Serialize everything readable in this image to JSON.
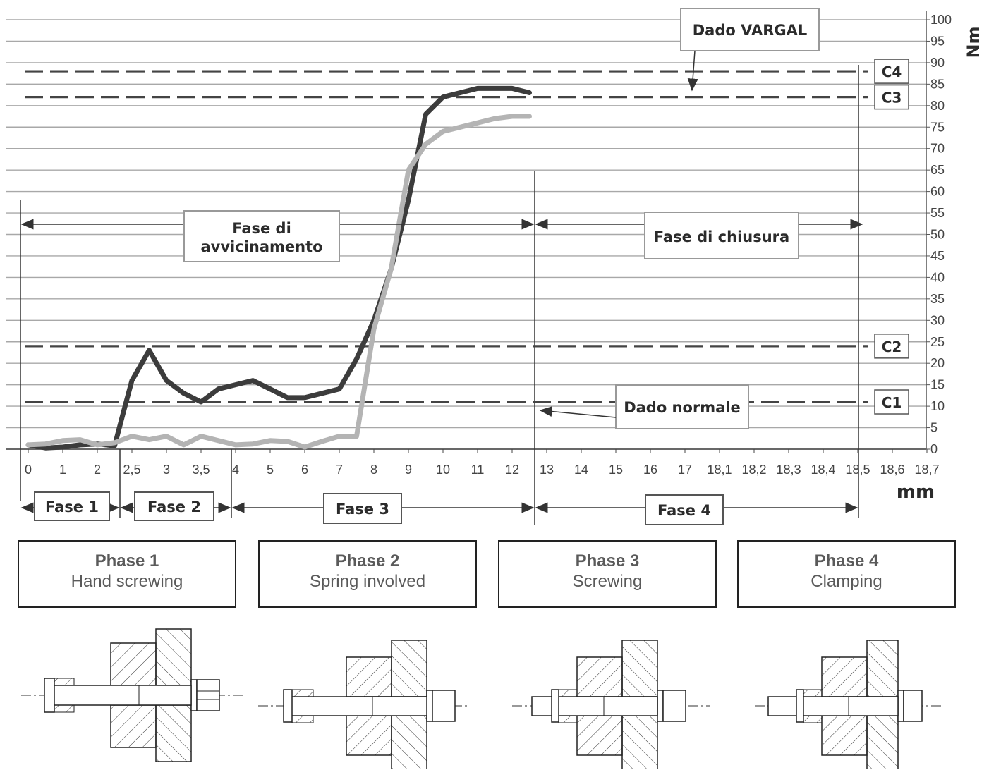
{
  "chart_data": {
    "type": "line",
    "x_tick_labels": [
      "0",
      "1",
      "2",
      "2,5",
      "3",
      "3,5",
      "4",
      "5",
      "6",
      "7",
      "8",
      "9",
      "10",
      "11",
      "12",
      "13",
      "14",
      "15",
      "16",
      "17",
      "18,1",
      "18,2",
      "18,3",
      "18,4",
      "18,5",
      "18,6",
      "18,7"
    ],
    "xlabel": "mm",
    "ylabel": "Nm",
    "ylim": [
      0,
      100
    ],
    "y_ticks": [
      0,
      5,
      10,
      15,
      20,
      25,
      30,
      35,
      40,
      45,
      50,
      55,
      60,
      65,
      70,
      75,
      80,
      85,
      90,
      95,
      100
    ],
    "series": [
      {
        "name": "Dado VARGAL",
        "color": "#3c3c3c",
        "points": [
          [
            0,
            1
          ],
          [
            0.5,
            0.3
          ],
          [
            1,
            0.5
          ],
          [
            1.5,
            1.0
          ],
          [
            2,
            1.2
          ],
          [
            2.5,
            0.8
          ],
          [
            2.75,
            8.5
          ],
          [
            3,
            16
          ],
          [
            3.5,
            23
          ],
          [
            4,
            16
          ],
          [
            4.5,
            13
          ],
          [
            5,
            11
          ],
          [
            5.5,
            14
          ],
          [
            6,
            15
          ],
          [
            6.5,
            16
          ],
          [
            7,
            14
          ],
          [
            7.5,
            12
          ],
          [
            8,
            12
          ],
          [
            8.5,
            13
          ],
          [
            9,
            14
          ],
          [
            9.5,
            21
          ],
          [
            10,
            30
          ],
          [
            10.5,
            42
          ],
          [
            11,
            58
          ],
          [
            11.5,
            78
          ],
          [
            12,
            82
          ],
          [
            12.5,
            83
          ],
          [
            13,
            84
          ],
          [
            13.5,
            84
          ],
          [
            14,
            84
          ],
          [
            14.5,
            83
          ]
        ]
      },
      {
        "name": "Dado normale",
        "color": "#b4b4b4",
        "points": [
          [
            0,
            1
          ],
          [
            0.5,
            1.2
          ],
          [
            1,
            2.0
          ],
          [
            1.5,
            2.2
          ],
          [
            2,
            1.0
          ],
          [
            2.5,
            1.5
          ],
          [
            3,
            3
          ],
          [
            3.5,
            2.2
          ],
          [
            4,
            3
          ],
          [
            4.5,
            1.0
          ],
          [
            5,
            3
          ],
          [
            5.5,
            2
          ],
          [
            6,
            1
          ],
          [
            6.5,
            1.2
          ],
          [
            7,
            2
          ],
          [
            7.5,
            1.8
          ],
          [
            8,
            0.5
          ],
          [
            8.5,
            1.8
          ],
          [
            9,
            3
          ],
          [
            9.5,
            3
          ],
          [
            10,
            28
          ],
          [
            10.5,
            42
          ],
          [
            11,
            65
          ],
          [
            11.5,
            71
          ],
          [
            12,
            74
          ],
          [
            12.5,
            75
          ],
          [
            13,
            76
          ],
          [
            13.5,
            77
          ],
          [
            14,
            77.5
          ],
          [
            14.5,
            77.5
          ]
        ]
      }
    ],
    "reference_lines": [
      {
        "label": "C1",
        "y": 11
      },
      {
        "label": "C2",
        "y": 24
      },
      {
        "label": "C3",
        "y": 82
      },
      {
        "label": "C4",
        "y": 88
      }
    ],
    "annotations": {
      "vargal": "Dado VARGAL",
      "normale": "Dado normale",
      "fase_avv_line1": "Fase di",
      "fase_avv_line2": "avvicinamento",
      "fase_chiusura": "Fase di chiusura"
    },
    "fasi": [
      "Fase 1",
      "Fase 2",
      "Fase 3",
      "Fase 4"
    ]
  },
  "phases": [
    {
      "title": "Phase 1",
      "subtitle": "Hand screwing"
    },
    {
      "title": "Phase 2",
      "subtitle": "Spring involved"
    },
    {
      "title": "Phase 3",
      "subtitle": "Screwing"
    },
    {
      "title": "Phase 4",
      "subtitle": "Clamping"
    }
  ]
}
